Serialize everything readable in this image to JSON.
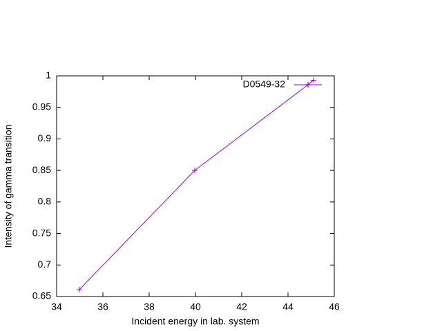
{
  "chart_data": {
    "type": "line",
    "x_label": "Incident energy in lab. system",
    "y_label": "Intensity of gamma transition",
    "series": [
      {
        "name": "D0549-32",
        "color": "#9400d3",
        "x": [
          34.98,
          39.97,
          44.87,
          45.1
        ],
        "values": [
          0.661,
          0.85,
          0.986,
          0.993
        ]
      }
    ],
    "xlim": [
      34,
      46
    ],
    "xticks": [
      34,
      36,
      38,
      40,
      42,
      44,
      46
    ],
    "ylim": [
      0.65,
      1
    ],
    "yticks": [
      0.65,
      0.7,
      0.75,
      0.8,
      0.85,
      0.9,
      0.95,
      1
    ],
    "legend": "top-right",
    "grid": false
  }
}
